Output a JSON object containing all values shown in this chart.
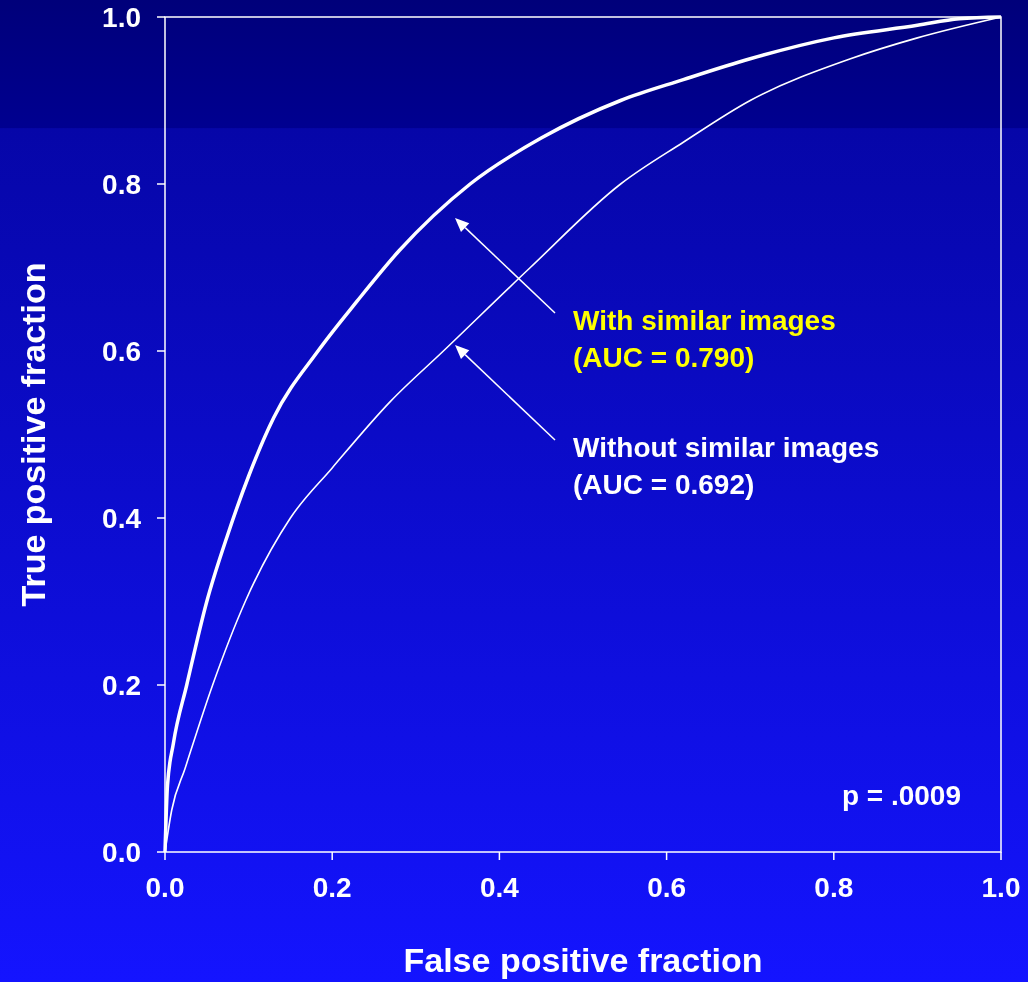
{
  "chart_data": {
    "type": "line",
    "xlabel": "False positive fraction",
    "ylabel": "True positive fraction",
    "xlim": [
      0,
      1
    ],
    "ylim": [
      0,
      1
    ],
    "xticks": [
      {
        "value": 0,
        "label": "0.0"
      },
      {
        "value": 0.2,
        "label": "0.2"
      },
      {
        "value": 0.4,
        "label": "0.4"
      },
      {
        "value": 0.6,
        "label": "0.6"
      },
      {
        "value": 0.8,
        "label": "0.8"
      },
      {
        "value": 1,
        "label": "1.0"
      }
    ],
    "yticks": [
      {
        "value": 0,
        "label": "0.0"
      },
      {
        "value": 0.2,
        "label": "0.2"
      },
      {
        "value": 0.4,
        "label": "0.4"
      },
      {
        "value": 0.6,
        "label": "0.6"
      },
      {
        "value": 0.8,
        "label": "0.8"
      },
      {
        "value": 1,
        "label": "1.0"
      }
    ],
    "grid": false,
    "marker": "none",
    "line_style": "solid",
    "series": [
      {
        "color": "#ffffff",
        "x": [
          0,
          0.003,
          0.01,
          0.026,
          0.05,
          0.075,
          0.1,
          0.13,
          0.183,
          0.23,
          0.28,
          0.365,
          0.45,
          0.545,
          0.62,
          0.7,
          0.8,
          0.9,
          0.95,
          1
        ],
        "values": [
          0,
          0.08,
          0.13,
          0.2,
          0.3,
          0.38,
          0.45,
          0.52,
          0.6,
          0.66,
          0.72,
          0.8,
          0.855,
          0.9,
          0.925,
          0.95,
          0.975,
          0.99,
          0.998,
          1
        ]
      },
      {
        "color": "#ffffff",
        "x": [
          0,
          0.008,
          0.024,
          0.057,
          0.096,
          0.15,
          0.2,
          0.27,
          0.333,
          0.437,
          0.545,
          0.62,
          0.7,
          0.82,
          0.9,
          1
        ],
        "values": [
          0,
          0.05,
          0.1,
          0.2,
          0.3,
          0.4,
          0.46,
          0.54,
          0.6,
          0.7,
          0.8,
          0.85,
          0.9,
          0.95,
          0.975,
          1
        ]
      }
    ],
    "annotations": [
      "With similar images\n(AUC = 0.790)",
      "Without similar images\n(AUC = 0.692)",
      "p = .0009"
    ]
  }
}
